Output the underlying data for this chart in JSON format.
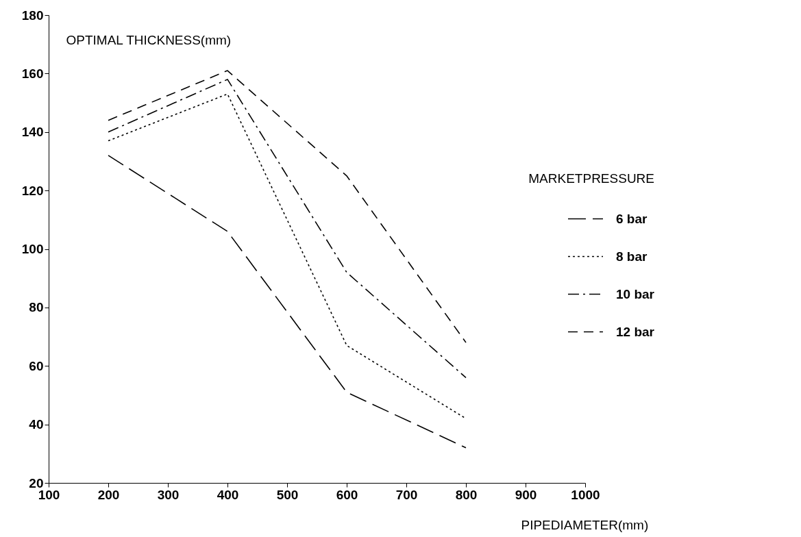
{
  "chart_data": {
    "type": "line",
    "xlabel": "PIPEDIAMETER(mm)",
    "ylabel": "OPTIMAL THICKNESS(mm)",
    "legend_title": "MARKETPRESSURE",
    "legend": "right",
    "grid": false,
    "marker": "none",
    "x": [
      200,
      400,
      600,
      800
    ],
    "xlim": [
      100,
      1000
    ],
    "xticks": [
      100,
      200,
      300,
      400,
      500,
      600,
      700,
      800,
      900,
      1000
    ],
    "ylim": [
      20,
      180
    ],
    "yticks": [
      20,
      40,
      60,
      80,
      100,
      120,
      140,
      160,
      180
    ],
    "series": [
      {
        "name": "6 bar",
        "color": "#000000",
        "line_style": "dashed",
        "values": [
          132,
          106,
          51,
          32
        ]
      },
      {
        "name": "8 bar",
        "color": "#000000",
        "line_style": "dotted",
        "values": [
          137,
          153,
          67,
          42
        ]
      },
      {
        "name": "10 bar",
        "color": "#000000",
        "line_style": "dashdot",
        "values": [
          140,
          158,
          92,
          56
        ]
      },
      {
        "name": "12 bar",
        "color": "#000000",
        "line_style": "dashed",
        "values": [
          144,
          161,
          125,
          68
        ]
      }
    ]
  }
}
